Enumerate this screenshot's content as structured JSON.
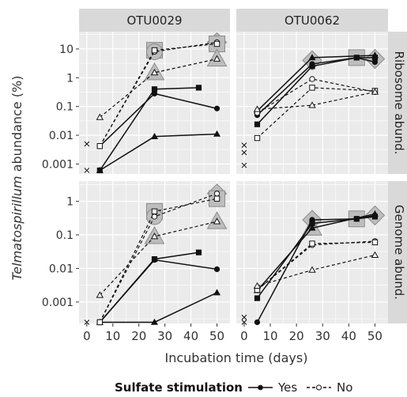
{
  "chart_data": {
    "type": "line",
    "x_label": "Incubation time (days)",
    "y_label_italic": "Telmatospirillum",
    "y_label_rest": " abundance (%)",
    "x_ticks": [
      0,
      10,
      20,
      30,
      40,
      50
    ],
    "x_tick_labels": [
      "0",
      "10",
      "20",
      "30",
      "40",
      "50"
    ],
    "x_range": [
      -3,
      55
    ],
    "column_strips": [
      "OTU0029",
      "OTU0062"
    ],
    "row_strips": [
      "Ribosome abund.",
      "Genome abund."
    ],
    "legend": {
      "title": "Sulfate stimulation",
      "items": [
        {
          "label": "Yes",
          "linestyle": "solid",
          "marker": "filled-circle"
        },
        {
          "label": "No",
          "linestyle": "dashed",
          "marker": "open-circle"
        }
      ]
    },
    "log_scale": true,
    "grid": true,
    "colors": {
      "panel_bg": "#ebebeb",
      "grid": "#ffffff",
      "strip_bg": "#d9d9d9",
      "highlight": "#bdbdbd",
      "line": "#111111"
    },
    "panels": [
      {
        "column": "OTU0029",
        "row": "Ribosome abund.",
        "y_ticks": [
          0.001,
          0.01,
          0.1,
          1,
          10
        ],
        "y_tick_labels": [
          "0.001",
          "0.01",
          "0.1",
          "1",
          "10"
        ],
        "y_range": [
          0.00045,
          40
        ],
        "series": [
          {
            "sulfate": "Yes",
            "marker": "circle",
            "points": [
              [
                5,
                0.0042
              ],
              [
                26,
                0.28
              ],
              [
                50,
                0.085
              ]
            ]
          },
          {
            "sulfate": "Yes",
            "marker": "square",
            "points": [
              [
                5,
                0.0006
              ],
              [
                26,
                0.4
              ],
              [
                43,
                0.45
              ]
            ]
          },
          {
            "sulfate": "Yes",
            "marker": "triangle",
            "points": [
              [
                5,
                0.0006
              ],
              [
                26,
                0.009
              ],
              [
                50,
                0.011
              ]
            ]
          },
          {
            "sulfate": "No",
            "marker": "circle",
            "points": [
              [
                5,
                0.0042
              ],
              [
                26,
                8
              ],
              [
                50,
                17
              ]
            ]
          },
          {
            "sulfate": "No",
            "marker": "square",
            "points": [
              [
                5,
                0.0042
              ],
              [
                26,
                9
              ],
              [
                50,
                15
              ]
            ]
          },
          {
            "sulfate": "No",
            "marker": "triangle",
            "points": [
              [
                5,
                0.042
              ],
              [
                26,
                1.5
              ],
              [
                50,
                4.5
              ]
            ]
          }
        ],
        "unconnected": [
          {
            "marker": "cross",
            "points": [
              [
                0,
                0.005
              ],
              [
                0,
                0.0006
              ]
            ]
          }
        ],
        "highlighted": [
          {
            "shape": "square",
            "x": 26,
            "y": 9
          },
          {
            "shape": "circle",
            "x": 26,
            "y": 8
          },
          {
            "shape": "triangle",
            "x": 26,
            "y": 1.5
          },
          {
            "shape": "diamond",
            "x": 50,
            "y": 17
          },
          {
            "shape": "square",
            "x": 50,
            "y": 15
          },
          {
            "shape": "triangle",
            "x": 50,
            "y": 4.5
          }
        ]
      },
      {
        "column": "OTU0062",
        "row": "Ribosome abund.",
        "y_ticks": [
          0.001,
          0.01,
          0.1,
          1,
          10
        ],
        "y_tick_labels": [],
        "y_range": [
          0.00045,
          40
        ],
        "series": [
          {
            "sulfate": "Yes",
            "marker": "circle",
            "points": [
              [
                5,
                0.05
              ],
              [
                26,
                3
              ],
              [
                43,
                5
              ],
              [
                50,
                3.5
              ]
            ]
          },
          {
            "sulfate": "Yes",
            "marker": "square",
            "points": [
              [
                5,
                0.024
              ],
              [
                26,
                2.5
              ],
              [
                43,
                5
              ],
              [
                50,
                5
              ]
            ]
          },
          {
            "sulfate": "Yes",
            "marker": "triangle",
            "points": [
              [
                5,
                0.07
              ],
              [
                26,
                5
              ],
              [
                50,
                6
              ]
            ]
          },
          {
            "sulfate": "No",
            "marker": "circle",
            "points": [
              [
                5,
                0.06
              ],
              [
                26,
                0.9
              ],
              [
                50,
                0.32
              ]
            ]
          },
          {
            "sulfate": "No",
            "marker": "square",
            "points": [
              [
                5,
                0.008
              ],
              [
                26,
                0.45
              ],
              [
                50,
                0.35
              ]
            ]
          },
          {
            "sulfate": "No",
            "marker": "triangle",
            "points": [
              [
                5,
                0.08
              ],
              [
                26,
                0.11
              ],
              [
                50,
                0.32
              ]
            ]
          }
        ],
        "unconnected": [
          {
            "marker": "cross",
            "points": [
              [
                0,
                0.0045
              ],
              [
                0,
                0.0025
              ],
              [
                0,
                0.0009
              ]
            ]
          }
        ],
        "highlighted": [
          {
            "shape": "diamond",
            "x": 26,
            "y": 4
          },
          {
            "shape": "square",
            "x": 43,
            "y": 5
          },
          {
            "shape": "diamond",
            "x": 50,
            "y": 4.5
          }
        ]
      },
      {
        "column": "OTU0029",
        "row": "Genome abund.",
        "y_ticks": [
          0.001,
          0.01,
          0.1,
          1
        ],
        "y_tick_labels": [
          "0.001",
          "0.01",
          "0.1",
          "1"
        ],
        "y_range": [
          0.00023,
          4
        ],
        "series": [
          {
            "sulfate": "Yes",
            "marker": "circle",
            "points": [
              [
                5,
                0.00025
              ],
              [
                26,
                0.018
              ],
              [
                50,
                0.0095
              ]
            ]
          },
          {
            "sulfate": "Yes",
            "marker": "square",
            "points": [
              [
                5,
                0.00025
              ],
              [
                26,
                0.019
              ],
              [
                43,
                0.03
              ]
            ]
          },
          {
            "sulfate": "Yes",
            "marker": "triangle",
            "points": [
              [
                5,
                0.00025
              ],
              [
                26,
                0.00025
              ],
              [
                50,
                0.0019
              ]
            ]
          },
          {
            "sulfate": "No",
            "marker": "circle",
            "points": [
              [
                5,
                0.00025
              ],
              [
                26,
                0.35
              ],
              [
                50,
                1.7
              ]
            ]
          },
          {
            "sulfate": "No",
            "marker": "square",
            "points": [
              [
                5,
                0.00025
              ],
              [
                26,
                0.5
              ],
              [
                50,
                1.2
              ]
            ]
          },
          {
            "sulfate": "No",
            "marker": "triangle",
            "points": [
              [
                5,
                0.0016
              ],
              [
                26,
                0.09
              ],
              [
                50,
                0.25
              ]
            ]
          }
        ],
        "unconnected": [
          {
            "marker": "cross",
            "points": [
              [
                0,
                0.00025
              ]
            ]
          }
        ],
        "highlighted": [
          {
            "shape": "square",
            "x": 26,
            "y": 0.5
          },
          {
            "shape": "circle",
            "x": 26,
            "y": 0.35
          },
          {
            "shape": "triangle",
            "x": 26,
            "y": 0.09
          },
          {
            "shape": "diamond",
            "x": 50,
            "y": 1.7
          },
          {
            "shape": "square",
            "x": 50,
            "y": 1.2
          },
          {
            "shape": "triangle",
            "x": 50,
            "y": 0.25
          }
        ]
      },
      {
        "column": "OTU0062",
        "row": "Genome abund.",
        "y_ticks": [
          0.001,
          0.01,
          0.1,
          1
        ],
        "y_tick_labels": [],
        "y_range": [
          0.00023,
          4
        ],
        "series": [
          {
            "sulfate": "Yes",
            "marker": "circle",
            "points": [
              [
                5,
                0.00025
              ],
              [
                26,
                0.28
              ],
              [
                43,
                0.3
              ],
              [
                50,
                0.38
              ]
            ]
          },
          {
            "sulfate": "Yes",
            "marker": "square",
            "points": [
              [
                5,
                0.0013
              ],
              [
                26,
                0.22
              ],
              [
                43,
                0.3
              ],
              [
                50,
                0.35
              ]
            ]
          },
          {
            "sulfate": "Yes",
            "marker": "triangle",
            "points": [
              [
                5,
                0.0022
              ],
              [
                26,
                0.16
              ],
              [
                50,
                0.42
              ]
            ]
          },
          {
            "sulfate": "No",
            "marker": "circle",
            "points": [
              [
                5,
                0.0023
              ],
              [
                26,
                0.05
              ],
              [
                50,
                0.065
              ]
            ]
          },
          {
            "sulfate": "No",
            "marker": "square",
            "points": [
              [
                5,
                0.0023
              ],
              [
                26,
                0.055
              ],
              [
                50,
                0.06
              ]
            ]
          },
          {
            "sulfate": "No",
            "marker": "triangle",
            "points": [
              [
                5,
                0.003
              ],
              [
                26,
                0.009
              ],
              [
                50,
                0.025
              ]
            ]
          }
        ],
        "unconnected": [
          {
            "marker": "cross",
            "points": [
              [
                0,
                0.00035
              ],
              [
                0,
                0.00025
              ]
            ]
          }
        ],
        "highlighted": [
          {
            "shape": "diamond",
            "x": 26,
            "y": 0.28
          },
          {
            "shape": "triangle",
            "x": 26,
            "y": 0.16
          },
          {
            "shape": "square",
            "x": 43,
            "y": 0.3
          },
          {
            "shape": "diamond",
            "x": 50,
            "y": 0.38
          }
        ]
      }
    ]
  }
}
